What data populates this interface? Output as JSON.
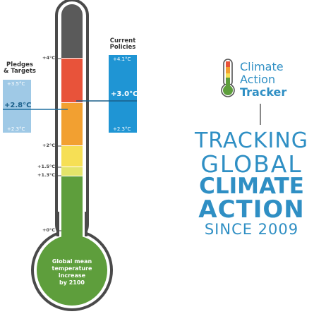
{
  "thermometer": {
    "tick_labels": [
      "+4°C",
      "+2°C",
      "+1.5°C",
      "+1.3°C",
      "+0°C"
    ],
    "bulb_text": [
      "Global mean",
      "temperature",
      "increase",
      "by 2100"
    ]
  },
  "pledges": {
    "title_line1": "Pledges",
    "title_line2": "& Targets",
    "upper": "+3.5°C",
    "central": "+2.8°C",
    "lower": "+2.3°C"
  },
  "current": {
    "title_line1": "Current",
    "title_line2": "Policies",
    "upper": "+4.1°C",
    "central": "+3.0°C",
    "lower": "+2.3°C"
  },
  "brand": {
    "line1": "Climate",
    "line2": "Action",
    "line3": "Tracker"
  },
  "tagline": {
    "line1": "TRACKING",
    "line2": "GLOBAL",
    "line3": "CLIMATE",
    "line4": "ACTION",
    "line5": "SINCE 2009"
  },
  "colors": {
    "accent_blue": "#2f8fc4",
    "pledges_band": "#9fc9e6",
    "current_band": "#1f95d4",
    "band_red": "#e8533a",
    "band_orange": "#f2a031",
    "band_yellow": "#f6df55",
    "band_green": "#5e9e3c",
    "band_dark": "#5a5a5a"
  }
}
